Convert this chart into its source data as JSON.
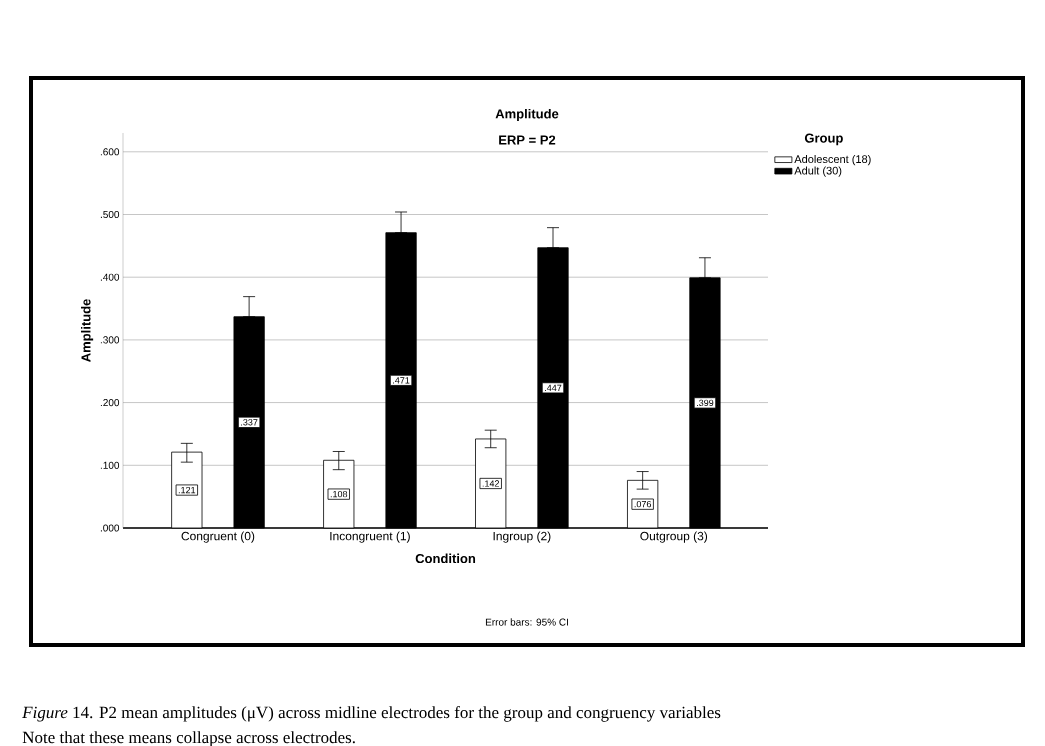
{
  "chart_data": {
    "type": "bar",
    "title": "Amplitude",
    "subtitle": "ERP = P2",
    "xlabel": "Condition",
    "ylabel": "Amplitude",
    "legend_title": "Group",
    "annotations": [
      "Error bars: 95% CI",
      "*Figure* 14. P2 mean amplitudes (μV) across midline electrodes for the group and congruency variables",
      "Note that these means collapse across electrodes."
    ],
    "categories": [
      "Congruent (0)",
      "Incongruent (1)",
      "Ingroup (2)",
      "Outgroup (3)"
    ],
    "series": [
      {
        "name": "Adolescent (18)",
        "color": "#ffffff",
        "values": [
          0.121,
          0.108,
          0.142,
          0.076
        ],
        "errors": [
          [
            0.105,
            0.135
          ],
          [
            0.093,
            0.122
          ],
          [
            0.128,
            0.156
          ],
          [
            0.062,
            0.09
          ]
        ],
        "value_labels": [
          ".121",
          ".108",
          ".142",
          ".076"
        ]
      },
      {
        "name": "Adult (30)",
        "color": "#000000",
        "values": [
          0.337,
          0.471,
          0.447,
          0.399
        ],
        "errors": [
          [
            0.337,
            0.369
          ],
          [
            0.471,
            0.504
          ],
          [
            0.447,
            0.479
          ],
          [
            0.399,
            0.431
          ]
        ],
        "value_labels": [
          ".337",
          ".471",
          ".447",
          ".399"
        ]
      }
    ],
    "ylim": [
      0,
      0.63
    ],
    "yticks": [
      {
        "value": 0,
        "label": ".000"
      },
      {
        "value": 0.1,
        "label": ".100"
      },
      {
        "value": 0.2,
        "label": ".200"
      },
      {
        "value": 0.3,
        "label": ".300"
      },
      {
        "value": 0.4,
        "label": ".400"
      },
      {
        "value": 0.5,
        "label": ".500"
      },
      {
        "value": 0.6,
        "label": ".600"
      }
    ],
    "grid": "y",
    "legend": "right"
  }
}
